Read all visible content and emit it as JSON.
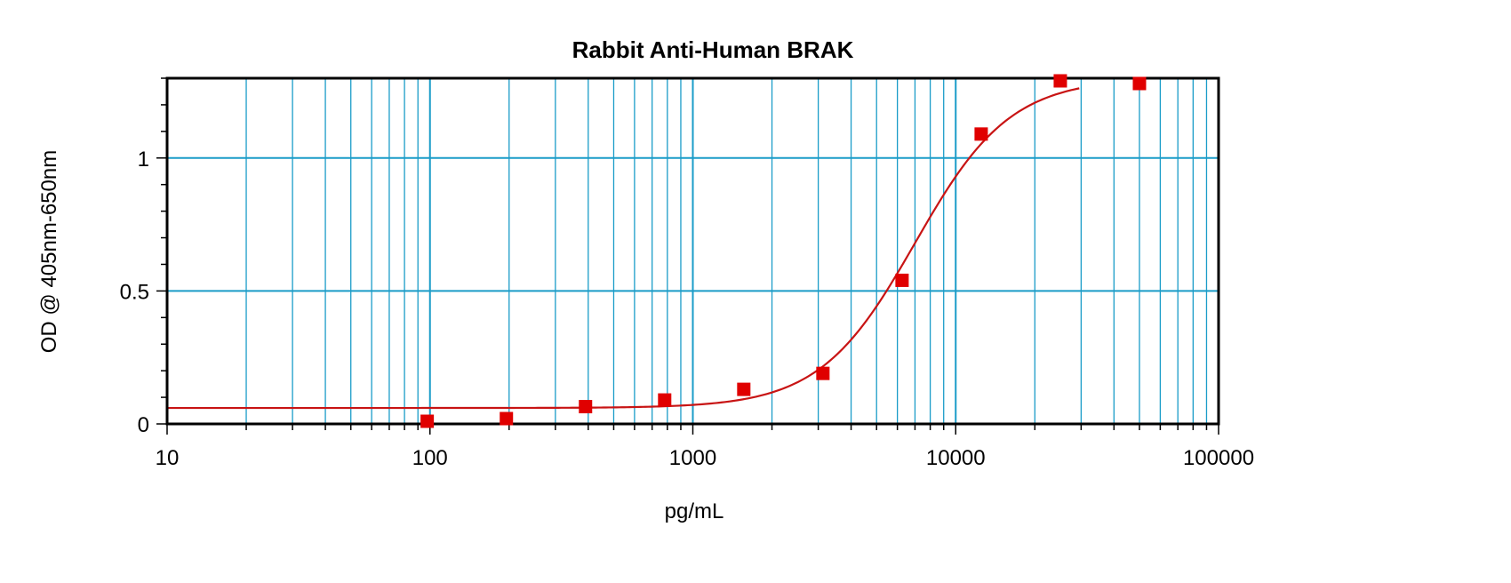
{
  "chart_data": {
    "type": "scatter",
    "title": "Rabbit Anti-Human BRAK",
    "xlabel": "pg/mL",
    "ylabel": "OD @ 405nm-650nm",
    "x_scale": "log",
    "xlim": [
      10,
      100000
    ],
    "ylim": [
      0,
      1.3
    ],
    "x_ticks": [
      10,
      100,
      1000,
      10000,
      100000
    ],
    "x_tick_labels": [
      "10",
      "100",
      "1000",
      "10000",
      "100000"
    ],
    "y_ticks": [
      0,
      0.5,
      1
    ],
    "y_tick_labels": [
      "0",
      "0.5",
      "1"
    ],
    "grid": true,
    "series": [
      {
        "kind": "points",
        "x": [
          97.6,
          195.3,
          390.6,
          781.3,
          1562.5,
          3125,
          6250,
          12500,
          25000,
          50000
        ],
        "y": [
          0.01,
          0.02,
          0.065,
          0.09,
          0.13,
          0.19,
          0.54,
          1.09,
          1.29,
          1.28
        ]
      },
      {
        "kind": "fit-curve",
        "model": "4PL",
        "bottom": 0.06,
        "top": 1.3,
        "ec50": 7000,
        "hill": 2.4
      }
    ],
    "colors": {
      "points": "#e00000",
      "curve": "#c81414",
      "major_grid": "#1a9cc8",
      "minor_grid": "#1a9cc8",
      "frame": "#000000"
    }
  }
}
